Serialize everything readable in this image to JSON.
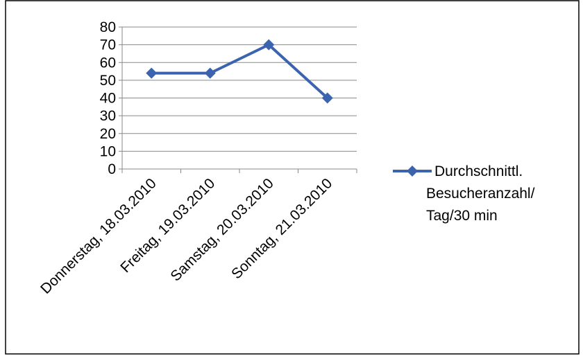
{
  "chart_data": {
    "type": "line",
    "categories": [
      "Donnerstag, 18.03.2010",
      "Freitag, 19.03.2010",
      "Samstag, 20.03.2010",
      "Sonntag, 21.03.2010"
    ],
    "series": [
      {
        "name": "Durchschnittl. Besucheranzahl/ Tag/30 min",
        "values": [
          54,
          54,
          70,
          40
        ],
        "color": "#3c64ae",
        "marker": "diamond"
      }
    ],
    "ylim": [
      0,
      80
    ],
    "yticks": [
      "0",
      "10",
      "20",
      "30",
      "40",
      "50",
      "60",
      "70",
      "80"
    ],
    "grid": true,
    "legend_position": "right",
    "legend_lines": [
      "Durchschnittl.",
      "Besucheranzahl/",
      "Tag/30 min"
    ]
  },
  "colors": {
    "frame": "#000000",
    "grid": "#888888",
    "axis": "#888888",
    "series": "#3c64ae"
  }
}
